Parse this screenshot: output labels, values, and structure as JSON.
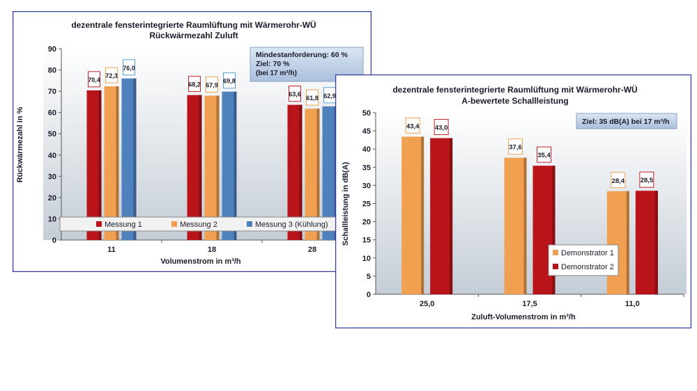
{
  "chart_data": [
    {
      "type": "bar",
      "title_line1": "dezentrale fensterintegrierte Raumlüftung mit Wärmerohr-WÜ",
      "title_line2": "Rückwärmezahl Zuluft",
      "xlabel": "Volumenstrom  in m³/h",
      "ylabel": "Rückwärmezahl in %",
      "ylim": [
        0,
        90
      ],
      "yticks": [
        "0",
        "10",
        "20",
        "30",
        "40",
        "50",
        "60",
        "70",
        "80",
        "90"
      ],
      "categories": [
        "11",
        "18",
        "28"
      ],
      "series": [
        {
          "name": "Messung 1",
          "values": [
            70.4,
            68.2,
            63.6
          ],
          "labels": [
            "70,4",
            "68,2",
            "63,6"
          ],
          "color": "#b81419",
          "label_border": "#c0212a"
        },
        {
          "name": "Messung 2",
          "values": [
            72.3,
            67.9,
            61.8
          ],
          "labels": [
            "72,3",
            "67,9",
            "61,8"
          ],
          "color": "#f0a050",
          "label_border": "#f0a050"
        },
        {
          "name": "Messung 3 (Kühlung)",
          "values": [
            76.0,
            69.8,
            62.9
          ],
          "labels": [
            "76,0",
            "69,8",
            "62,9"
          ],
          "color": "#4f81bd",
          "label_border": "#5b9bd5"
        }
      ],
      "annotation": {
        "line1": "Mindestanforderung:  60 %",
        "line2": "Ziel: 70 %",
        "line3": "(bei 17 m³/h)"
      },
      "legend_position": "bottom",
      "grid": false
    },
    {
      "type": "bar",
      "title_line1": "dezentrale fensterintegrierte Raumlüftung mit Wärmerohr-WÜ",
      "title_line2": "A-bewertete Schallleistung",
      "xlabel": "Zuluft-Volumenstrom  in m³/h",
      "ylabel": "Schallleistung in dB(A)",
      "ylim": [
        0,
        50
      ],
      "yticks": [
        "0",
        "5",
        "10",
        "15",
        "20",
        "25",
        "30",
        "35",
        "40",
        "45",
        "50"
      ],
      "categories": [
        "25,0",
        "17,5",
        "11,0"
      ],
      "series": [
        {
          "name": "Demonstrator 1",
          "values": [
            43.4,
            37.6,
            28.4
          ],
          "labels": [
            "43,4",
            "37,6",
            "28,4"
          ],
          "color": "#f0a050",
          "label_border": "#f0a050"
        },
        {
          "name": "Demonstrator 2",
          "values": [
            43.0,
            35.4,
            28.5
          ],
          "labels": [
            "43,0",
            "35,4",
            "28,5"
          ],
          "color": "#b81419",
          "label_border": "#c0212a"
        }
      ],
      "annotation": {
        "line1": "Ziel: 35 dB(A)  bei 17 m³/h"
      },
      "legend_position": "right-middle",
      "grid": false
    }
  ]
}
